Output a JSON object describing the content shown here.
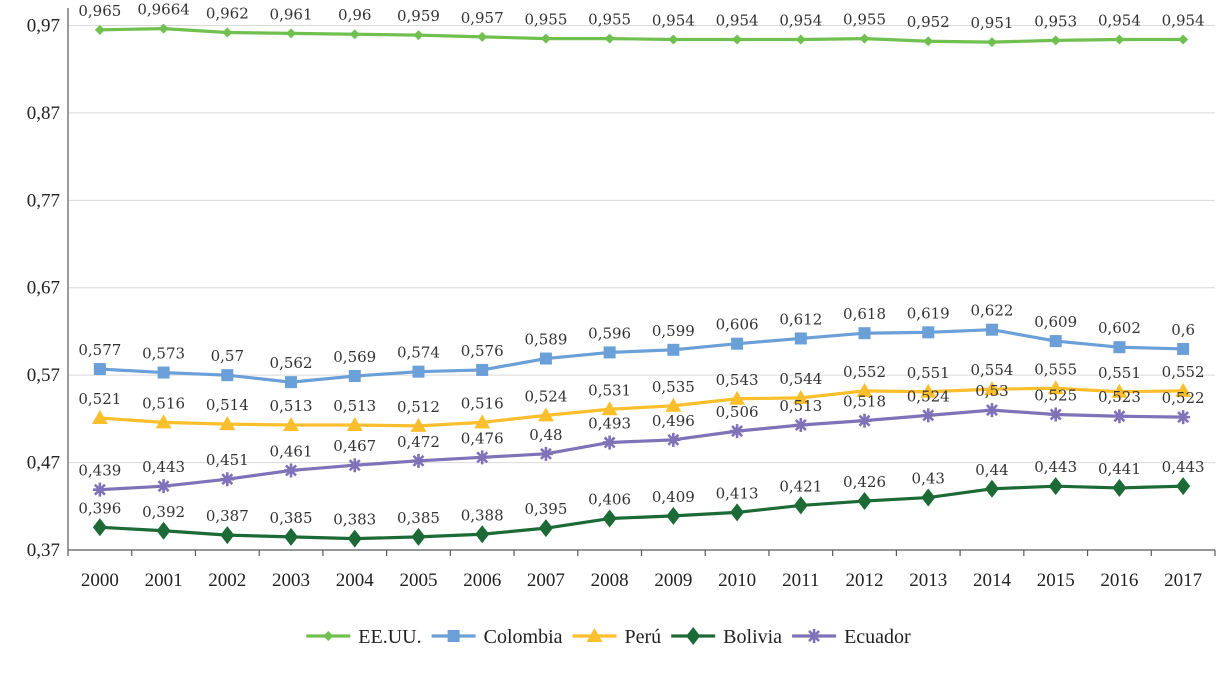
{
  "chart_data": {
    "type": "line",
    "title": "",
    "xlabel": "",
    "ylabel": "",
    "categories": [
      "2000",
      "2001",
      "2002",
      "2003",
      "2004",
      "2005",
      "2006",
      "2007",
      "2008",
      "2009",
      "2010",
      "2011",
      "2012",
      "2013",
      "2014",
      "2015",
      "2016",
      "2017"
    ],
    "ylim": [
      0.37,
      0.99
    ],
    "yticks": [
      0.37,
      0.47,
      0.57,
      0.67,
      0.77,
      0.87,
      0.97
    ],
    "ytick_labels": [
      "0,37",
      "0,47",
      "0,57",
      "0,67",
      "0,77",
      "0,87",
      "0,97"
    ],
    "grid": true,
    "legend_position": "bottom",
    "series": [
      {
        "name": "EE.UU.",
        "color": "#70c04f",
        "marker": "diamond-small",
        "values": [
          0.965,
          0.9664,
          0.962,
          0.961,
          0.96,
          0.959,
          0.957,
          0.955,
          0.955,
          0.954,
          0.954,
          0.954,
          0.955,
          0.952,
          0.951,
          0.953,
          0.954,
          0.954
        ],
        "labels": [
          "0,965",
          "0,9664",
          "0,962",
          "0,961",
          "0,96",
          "0,959",
          "0,957",
          "0,955",
          "0,955",
          "0,954",
          "0,954",
          "0,954",
          "0,955",
          "0,952",
          "0,951",
          "0,953",
          "0,954",
          "0,954"
        ]
      },
      {
        "name": "Colombia",
        "color": "#6a9fd8",
        "marker": "square",
        "values": [
          0.577,
          0.573,
          0.57,
          0.562,
          0.569,
          0.574,
          0.576,
          0.589,
          0.596,
          0.599,
          0.606,
          0.612,
          0.618,
          0.619,
          0.622,
          0.609,
          0.602,
          0.6
        ],
        "labels": [
          "0,577",
          "0,573",
          "0,57",
          "0,562",
          "0,569",
          "0,574",
          "0,576",
          "0,589",
          "0,596",
          "0,599",
          "0,606",
          "0,612",
          "0,618",
          "0,619",
          "0,622",
          "0,609",
          "0,602",
          "0,6"
        ]
      },
      {
        "name": "Perú",
        "color": "#fbbf2d",
        "marker": "triangle",
        "values": [
          0.521,
          0.516,
          0.514,
          0.513,
          0.513,
          0.512,
          0.516,
          0.524,
          0.531,
          0.535,
          0.543,
          0.544,
          0.552,
          0.551,
          0.554,
          0.555,
          0.551,
          0.552
        ],
        "labels": [
          "0,521",
          "0,516",
          "0,514",
          "0,513",
          "0,513",
          "0,512",
          "0,516",
          "0,524",
          "0,531",
          "0,535",
          "0,543",
          "0,544",
          "0,552",
          "0,551",
          "0,554",
          "0,555",
          "0,551",
          "0,552"
        ]
      },
      {
        "name": "Bolivia",
        "color": "#1c6b37",
        "marker": "diamond",
        "values": [
          0.396,
          0.392,
          0.387,
          0.385,
          0.383,
          0.385,
          0.388,
          0.395,
          0.406,
          0.409,
          0.413,
          0.421,
          0.426,
          0.43,
          0.44,
          0.443,
          0.441,
          0.443
        ],
        "labels": [
          "0,396",
          "0,392",
          "0,387",
          "0,385",
          "0,383",
          "0,385",
          "0,388",
          "0,395",
          "0,406",
          "0,409",
          "0,413",
          "0,421",
          "0,426",
          "0,43",
          "0,44",
          "0,443",
          "0,441",
          "0,443"
        ]
      },
      {
        "name": "Ecuador",
        "color": "#8072b8",
        "marker": "asterisk",
        "values": [
          0.439,
          0.443,
          0.451,
          0.461,
          0.467,
          0.472,
          0.476,
          0.48,
          0.493,
          0.496,
          0.506,
          0.513,
          0.518,
          0.524,
          0.53,
          0.525,
          0.523,
          0.522
        ],
        "labels": [
          "0,439",
          "0,443",
          "0,451",
          "0,461",
          "0,467",
          "0,472",
          "0,476",
          "0,48",
          "0,493",
          "0,496",
          "0,506",
          "0,513",
          "0,518",
          "0,524",
          "0,53",
          "0,525",
          "0,523",
          "0,522"
        ]
      }
    ]
  }
}
